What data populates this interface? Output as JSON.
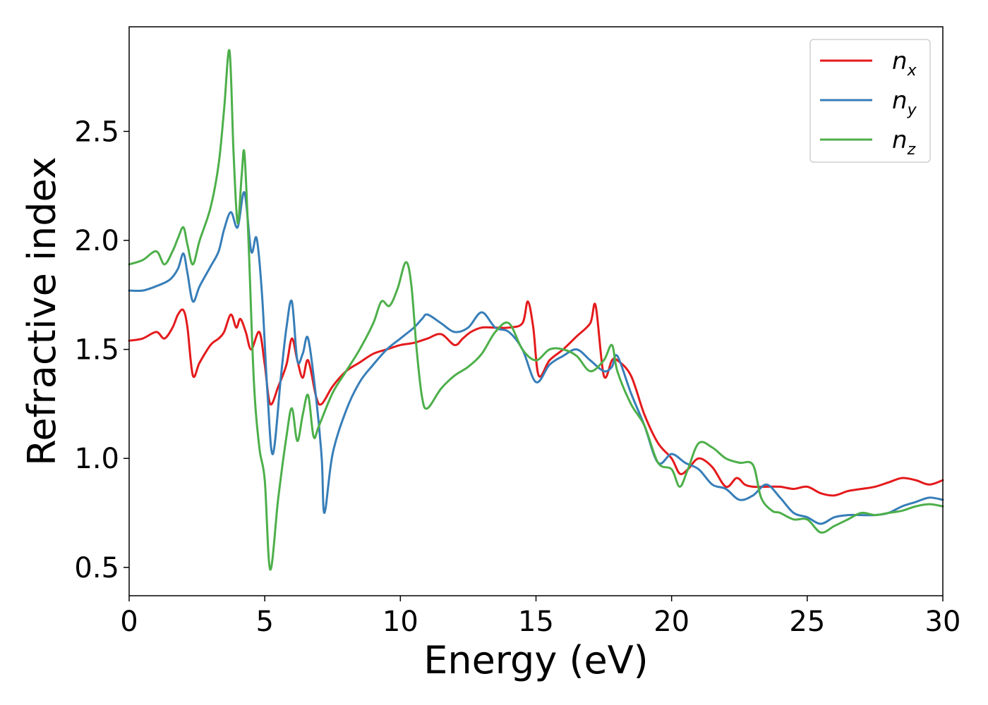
{
  "chart_data": {
    "type": "line",
    "title": "",
    "xlabel": "Energy (eV)",
    "ylabel": "Refractive index",
    "xlim": [
      0,
      30
    ],
    "ylim": [
      0.37,
      2.98
    ],
    "xticks": [
      0,
      5,
      10,
      15,
      20,
      25,
      30
    ],
    "xtick_labels": [
      "0",
      "5",
      "10",
      "15",
      "20",
      "25",
      "30"
    ],
    "yticks": [
      0.5,
      1.0,
      1.5,
      2.0,
      2.5
    ],
    "ytick_labels": [
      "0.5",
      "1.0",
      "1.5",
      "2.0",
      "2.5"
    ],
    "grid": false,
    "legend_position": "top-right",
    "series": [
      {
        "name": "n",
        "subscript": "x",
        "color": "#e41a1c",
        "x": [
          0,
          0.5,
          1.0,
          1.3,
          1.6,
          1.8,
          2.0,
          2.15,
          2.35,
          2.6,
          3.0,
          3.3,
          3.5,
          3.75,
          3.95,
          4.1,
          4.3,
          4.5,
          4.8,
          5.0,
          5.2,
          5.5,
          5.8,
          6.0,
          6.2,
          6.4,
          6.6,
          6.9,
          7.1,
          7.5,
          8.0,
          8.5,
          9.0,
          9.5,
          10.0,
          10.5,
          11.0,
          11.5,
          12.0,
          12.3,
          12.6,
          13.0,
          13.5,
          14.0,
          14.5,
          14.7,
          14.9,
          15.1,
          15.5,
          16.0,
          16.5,
          17.0,
          17.2,
          17.5,
          17.8,
          18.0,
          18.5,
          19.0,
          19.5,
          20.0,
          20.3,
          20.6,
          21.0,
          21.5,
          22.0,
          22.4,
          22.7,
          23.0,
          23.5,
          24.0,
          24.5,
          25.0,
          25.5,
          26.0,
          26.5,
          27.0,
          27.5,
          28.0,
          28.5,
          29.0,
          29.5,
          30.0
        ],
        "y": [
          1.54,
          1.55,
          1.58,
          1.55,
          1.6,
          1.66,
          1.68,
          1.6,
          1.38,
          1.44,
          1.52,
          1.55,
          1.58,
          1.66,
          1.6,
          1.64,
          1.58,
          1.5,
          1.58,
          1.43,
          1.25,
          1.33,
          1.43,
          1.55,
          1.45,
          1.37,
          1.45,
          1.28,
          1.25,
          1.33,
          1.4,
          1.44,
          1.48,
          1.5,
          1.52,
          1.53,
          1.55,
          1.57,
          1.52,
          1.55,
          1.58,
          1.6,
          1.6,
          1.6,
          1.62,
          1.72,
          1.6,
          1.38,
          1.45,
          1.5,
          1.56,
          1.62,
          1.7,
          1.38,
          1.45,
          1.45,
          1.38,
          1.2,
          1.07,
          1.0,
          0.93,
          0.95,
          1.0,
          0.96,
          0.87,
          0.91,
          0.88,
          0.87,
          0.87,
          0.87,
          0.86,
          0.87,
          0.84,
          0.83,
          0.85,
          0.86,
          0.87,
          0.89,
          0.91,
          0.9,
          0.88,
          0.9
        ]
      },
      {
        "name": "n",
        "subscript": "y",
        "color": "#377eb8",
        "x": [
          0,
          0.5,
          1.0,
          1.5,
          1.8,
          2.0,
          2.15,
          2.35,
          2.6,
          3.0,
          3.3,
          3.5,
          3.75,
          4.0,
          4.25,
          4.5,
          4.7,
          4.9,
          5.1,
          5.3,
          5.6,
          5.8,
          6.0,
          6.2,
          6.4,
          6.6,
          6.9,
          7.1,
          7.2,
          7.5,
          8.0,
          8.5,
          9.0,
          9.5,
          10.0,
          10.5,
          10.8,
          11.0,
          11.5,
          12.0,
          12.5,
          13.0,
          13.5,
          14.0,
          14.5,
          15.0,
          15.5,
          16.0,
          16.5,
          17.0,
          17.5,
          17.8,
          18.0,
          18.5,
          19.0,
          19.5,
          20.0,
          20.5,
          21.0,
          21.5,
          22.0,
          22.5,
          23.0,
          23.5,
          24.0,
          24.5,
          25.0,
          25.5,
          26.0,
          26.5,
          27.0,
          27.5,
          28.0,
          28.5,
          29.0,
          29.5,
          30.0
        ],
        "y": [
          1.77,
          1.77,
          1.79,
          1.82,
          1.87,
          1.94,
          1.85,
          1.72,
          1.79,
          1.88,
          1.95,
          2.05,
          2.13,
          2.06,
          2.22,
          1.95,
          2.01,
          1.75,
          1.3,
          1.02,
          1.38,
          1.6,
          1.72,
          1.45,
          1.48,
          1.55,
          1.27,
          1.0,
          0.75,
          1.02,
          1.22,
          1.35,
          1.43,
          1.5,
          1.55,
          1.6,
          1.64,
          1.66,
          1.62,
          1.58,
          1.6,
          1.67,
          1.6,
          1.58,
          1.5,
          1.35,
          1.43,
          1.47,
          1.5,
          1.45,
          1.4,
          1.42,
          1.47,
          1.3,
          1.15,
          0.98,
          1.02,
          0.98,
          0.95,
          0.88,
          0.86,
          0.81,
          0.83,
          0.88,
          0.82,
          0.75,
          0.73,
          0.7,
          0.73,
          0.74,
          0.74,
          0.74,
          0.75,
          0.78,
          0.8,
          0.82,
          0.81
        ]
      },
      {
        "name": "n",
        "subscript": "z",
        "color": "#4daf4a",
        "x": [
          0,
          0.5,
          1.0,
          1.3,
          1.6,
          1.8,
          2.0,
          2.15,
          2.35,
          2.6,
          3.0,
          3.3,
          3.5,
          3.7,
          3.85,
          4.0,
          4.15,
          4.25,
          4.4,
          4.6,
          4.8,
          5.0,
          5.2,
          5.5,
          5.8,
          6.0,
          6.2,
          6.4,
          6.6,
          6.8,
          7.0,
          7.5,
          8.0,
          8.5,
          9.0,
          9.3,
          9.6,
          9.9,
          10.2,
          10.4,
          10.6,
          10.8,
          11.0,
          11.5,
          12.0,
          12.5,
          13.0,
          13.5,
          14.0,
          14.5,
          15.0,
          15.5,
          16.0,
          16.5,
          17.0,
          17.5,
          17.8,
          18.0,
          18.5,
          19.0,
          19.5,
          20.0,
          20.3,
          20.6,
          21.0,
          21.5,
          22.0,
          22.5,
          23.0,
          23.3,
          23.7,
          24.0,
          24.5,
          25.0,
          25.5,
          26.0,
          26.5,
          27.0,
          27.5,
          28.0,
          28.5,
          29.0,
          29.5,
          30.0
        ],
        "y": [
          1.89,
          1.91,
          1.95,
          1.89,
          1.95,
          2.01,
          2.06,
          1.98,
          1.89,
          2.0,
          2.15,
          2.35,
          2.6,
          2.87,
          2.4,
          2.08,
          2.3,
          2.4,
          2.0,
          1.35,
          1.05,
          0.9,
          0.49,
          0.82,
          1.1,
          1.23,
          1.08,
          1.2,
          1.29,
          1.1,
          1.15,
          1.3,
          1.4,
          1.5,
          1.62,
          1.72,
          1.7,
          1.78,
          1.9,
          1.8,
          1.5,
          1.28,
          1.23,
          1.32,
          1.38,
          1.42,
          1.48,
          1.58,
          1.62,
          1.5,
          1.45,
          1.5,
          1.5,
          1.47,
          1.4,
          1.45,
          1.52,
          1.4,
          1.25,
          1.15,
          0.98,
          0.95,
          0.87,
          0.95,
          1.07,
          1.05,
          1.0,
          0.98,
          0.97,
          0.82,
          0.76,
          0.75,
          0.72,
          0.72,
          0.66,
          0.69,
          0.72,
          0.75,
          0.74,
          0.75,
          0.76,
          0.78,
          0.79,
          0.78
        ]
      }
    ]
  }
}
